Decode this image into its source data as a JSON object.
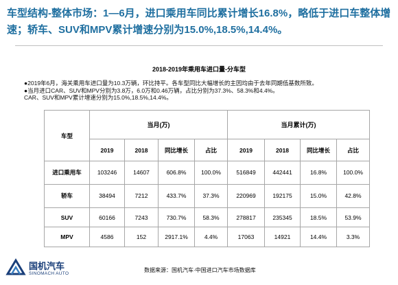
{
  "headline": "车型结构-整体市场：1—6月，进口乘用车同比累计增长16.8%，略低于进口车整体增速；轿车、SUV和MPV累计增速分别为15.0%,18.5%,14.4%。",
  "table_title": "2018-2019年乘用车进口量-分车型",
  "notes": [
    "●2019年6月，海关乘用车进口量为10.3万辆，环比持平。各车型同比大幅增长的主因均由于去年同期低基数所致。",
    "●当月进口CAR、SUV和MPV分别为3.8万，6.0万和0.46万辆，占比分别为37.3%、58.3%和4.4%。",
    "CAR、SUV和MPV累计增速分别为15.0%,18.5%,14.4%。"
  ],
  "table": {
    "corner_label": "车型",
    "group_month": "当月(万)",
    "group_ytd": "当月累计(万)",
    "subheaders": [
      "2019",
      "2018",
      "同比增长",
      "占比",
      "2019",
      "2018",
      "同比增长",
      "占比"
    ],
    "rows": [
      {
        "label": "进口乘用车",
        "cells": [
          "103246",
          "14607",
          "606.8%",
          "100.0%",
          "516849",
          "442441",
          "16.8%",
          "100.0%"
        ]
      },
      {
        "label": "轿车",
        "cells": [
          "38494",
          "7212",
          "433.7%",
          "37.3%",
          "220969",
          "192175",
          "15.0%",
          "42.8%"
        ]
      },
      {
        "label": "SUV",
        "cells": [
          "60166",
          "7243",
          "730.7%",
          "58.3%",
          "278817",
          "235345",
          "18.5%",
          "53.9%"
        ]
      },
      {
        "label": "MPV",
        "cells": [
          "4586",
          "152",
          "2917.1%",
          "4.4%",
          "17063",
          "14921",
          "14.4%",
          "3.3%"
        ]
      }
    ]
  },
  "source": "数据来源：国机汽车·中国进口汽车市场数据库",
  "logo": {
    "name_cn": "国机汽车",
    "name_en": "SINOMACH AUTO",
    "icon": "sinomach-logo-icon"
  },
  "colors": {
    "headline": "#1f6fa0",
    "logo": "#1a3f7a",
    "border": "#a6a6a6"
  }
}
